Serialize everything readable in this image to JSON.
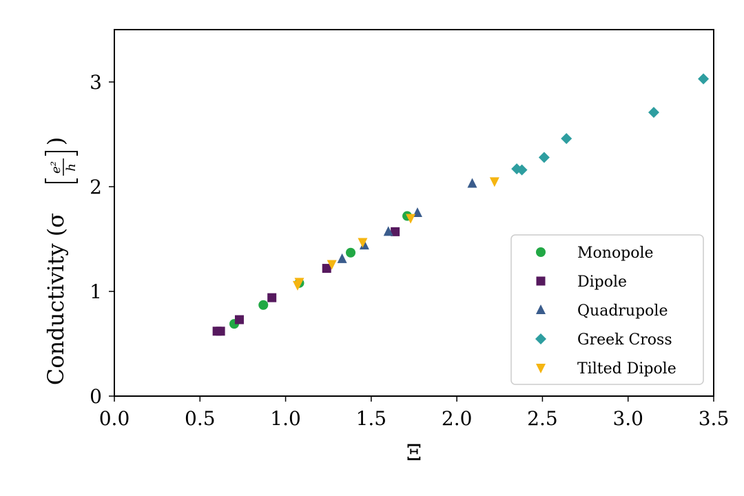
{
  "chart_data": {
    "type": "scatter",
    "title": "",
    "xlabel": "Ξ",
    "ylabel_text": "Conductivity (σ",
    "ylabel_unit": {
      "numerator": "e²",
      "denominator": "h"
    },
    "ylabel_close": ")",
    "xlim": [
      0.0,
      3.5
    ],
    "ylim": [
      0,
      3.5
    ],
    "xticks": [
      "0.0",
      "0.5",
      "1.0",
      "1.5",
      "2.0",
      "2.5",
      "3.0",
      "3.5"
    ],
    "yticks": [
      "0",
      "1",
      "2",
      "3"
    ],
    "grid": false,
    "legend_position": "lower-right",
    "series": [
      {
        "name": "Monopole",
        "marker": "circle",
        "color": "#22a845",
        "points": [
          [
            0.7,
            0.69
          ],
          [
            0.87,
            0.87
          ],
          [
            1.08,
            1.08
          ],
          [
            1.38,
            1.37
          ],
          [
            1.71,
            1.72
          ]
        ]
      },
      {
        "name": "Dipole",
        "marker": "square",
        "color": "#56195e",
        "points": [
          [
            0.6,
            0.62
          ],
          [
            0.62,
            0.62
          ],
          [
            0.73,
            0.73
          ],
          [
            0.92,
            0.94
          ],
          [
            1.24,
            1.22
          ],
          [
            1.64,
            1.57
          ]
        ]
      },
      {
        "name": "Quadrupole",
        "marker": "triangle-up",
        "color": "#3a5c8c",
        "points": [
          [
            1.33,
            1.31
          ],
          [
            1.46,
            1.44
          ],
          [
            1.6,
            1.57
          ],
          [
            1.77,
            1.75
          ],
          [
            2.09,
            2.03
          ]
        ]
      },
      {
        "name": "Greek Cross",
        "marker": "diamond",
        "color": "#2e9ea0",
        "points": [
          [
            2.35,
            2.17
          ],
          [
            2.38,
            2.16
          ],
          [
            2.51,
            2.28
          ],
          [
            2.64,
            2.46
          ],
          [
            3.15,
            2.71
          ],
          [
            3.44,
            3.03
          ]
        ]
      },
      {
        "name": "Tilted Dipole",
        "marker": "triangle-down",
        "color": "#f5b511",
        "points": [
          [
            1.07,
            1.06
          ],
          [
            1.08,
            1.09
          ],
          [
            1.27,
            1.26
          ],
          [
            1.45,
            1.47
          ],
          [
            1.73,
            1.7
          ],
          [
            2.22,
            2.05
          ]
        ]
      }
    ]
  }
}
